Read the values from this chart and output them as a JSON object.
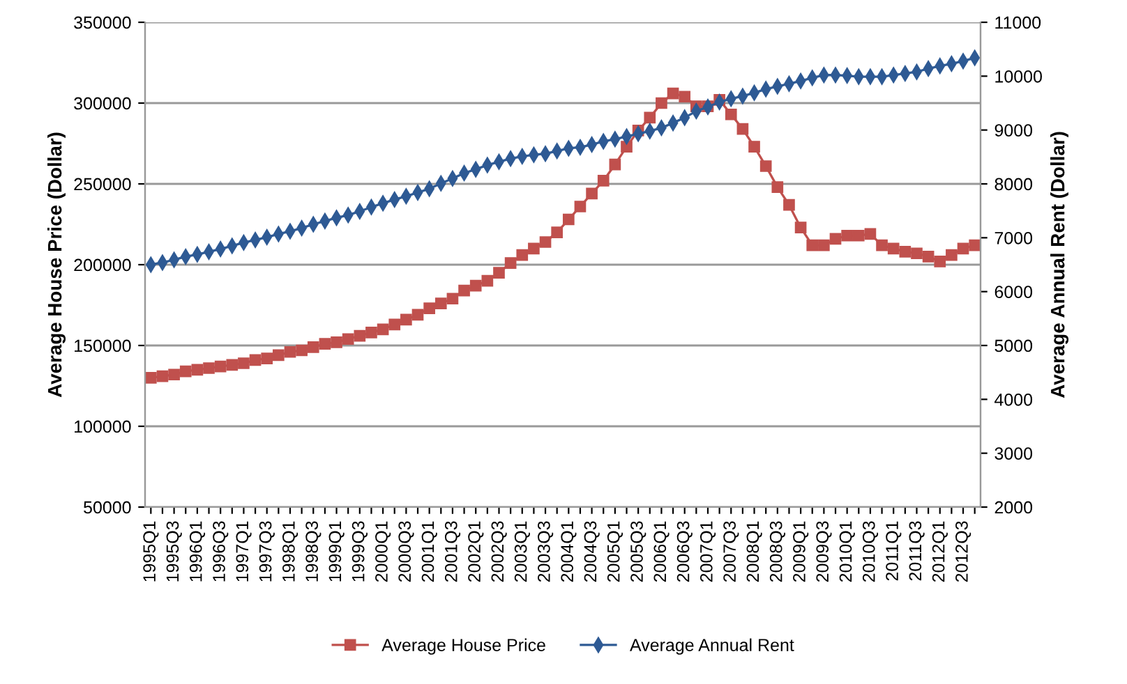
{
  "chart_data": {
    "type": "line",
    "ylabel": "Average House Price (Dollar)",
    "y2label": "Average Annual Rent (Dollar)",
    "categories": [
      "1995Q1",
      null,
      "1995Q3",
      null,
      "1996Q1",
      null,
      "1996Q3",
      null,
      "1997Q1",
      null,
      "1997Q3",
      null,
      "1998Q1",
      null,
      "1998Q3",
      null,
      "1999Q1",
      null,
      "1999Q3",
      null,
      "2000Q1",
      null,
      "2000Q3",
      null,
      "2001Q1",
      null,
      "2001Q3",
      null,
      "2002Q1",
      null,
      "2002Q3",
      null,
      "2003Q1",
      null,
      "2003Q3",
      null,
      "2004Q1",
      null,
      "2004Q3",
      null,
      "2005Q1",
      null,
      "2005Q3",
      null,
      "2006Q1",
      null,
      "2006Q3",
      null,
      "2007Q1",
      null,
      "2007Q3",
      null,
      "2008Q1",
      null,
      "2008Q3",
      null,
      "2009Q1",
      null,
      "2009Q3",
      null,
      "2010Q1",
      null,
      "2010Q3",
      null,
      "2011Q1",
      null,
      "2011Q3",
      null,
      "2012Q1",
      null,
      "2012Q3",
      null
    ],
    "series": [
      {
        "name": "Average House Price",
        "color": "#c0504d",
        "marker": "square",
        "values": [
          130000,
          131000,
          132000,
          134000,
          135000,
          136000,
          137000,
          138000,
          139000,
          141000,
          142000,
          144000,
          146000,
          147000,
          149000,
          151000,
          152000,
          154000,
          156000,
          158000,
          160000,
          163000,
          166000,
          169000,
          173000,
          176000,
          179000,
          184000,
          187000,
          190000,
          195000,
          201000,
          206000,
          210000,
          214000,
          220000,
          228000,
          236000,
          244000,
          252000,
          262000,
          273000,
          283000,
          291000,
          300000,
          306000,
          304000,
          298000,
          298000,
          302000,
          293000,
          284000,
          273000,
          261000,
          248000,
          237000,
          223000,
          212000,
          212000,
          216000,
          218000,
          218000,
          219000,
          212000,
          210000,
          208000,
          207000,
          205000,
          202000,
          206000,
          210000,
          212000
        ]
      },
      {
        "name": "Average Annual Rent",
        "color": "#2e5a94",
        "marker": "diamond",
        "axis": "y2",
        "values": [
          6500,
          6540,
          6590,
          6650,
          6690,
          6740,
          6790,
          6850,
          6910,
          6960,
          7010,
          7070,
          7120,
          7180,
          7250,
          7310,
          7370,
          7420,
          7490,
          7570,
          7640,
          7710,
          7770,
          7840,
          7910,
          8010,
          8100,
          8200,
          8270,
          8350,
          8410,
          8470,
          8510,
          8540,
          8560,
          8610,
          8660,
          8680,
          8730,
          8790,
          8830,
          8880,
          8930,
          8980,
          9040,
          9130,
          9230,
          9350,
          9430,
          9520,
          9580,
          9630,
          9690,
          9760,
          9810,
          9860,
          9910,
          9970,
          10020,
          10020,
          10010,
          9990,
          9990,
          9990,
          10020,
          10050,
          10080,
          10140,
          10190,
          10230,
          10280,
          10340
        ]
      }
    ],
    "ylim": [
      50000,
      350000
    ],
    "yticks": [
      50000,
      100000,
      150000,
      200000,
      250000,
      300000,
      350000
    ],
    "y2lim": [
      2000,
      11000
    ],
    "y2ticks": [
      2000,
      3000,
      4000,
      5000,
      6000,
      7000,
      8000,
      9000,
      10000,
      11000
    ],
    "grid": "y",
    "legend": "bottom"
  }
}
